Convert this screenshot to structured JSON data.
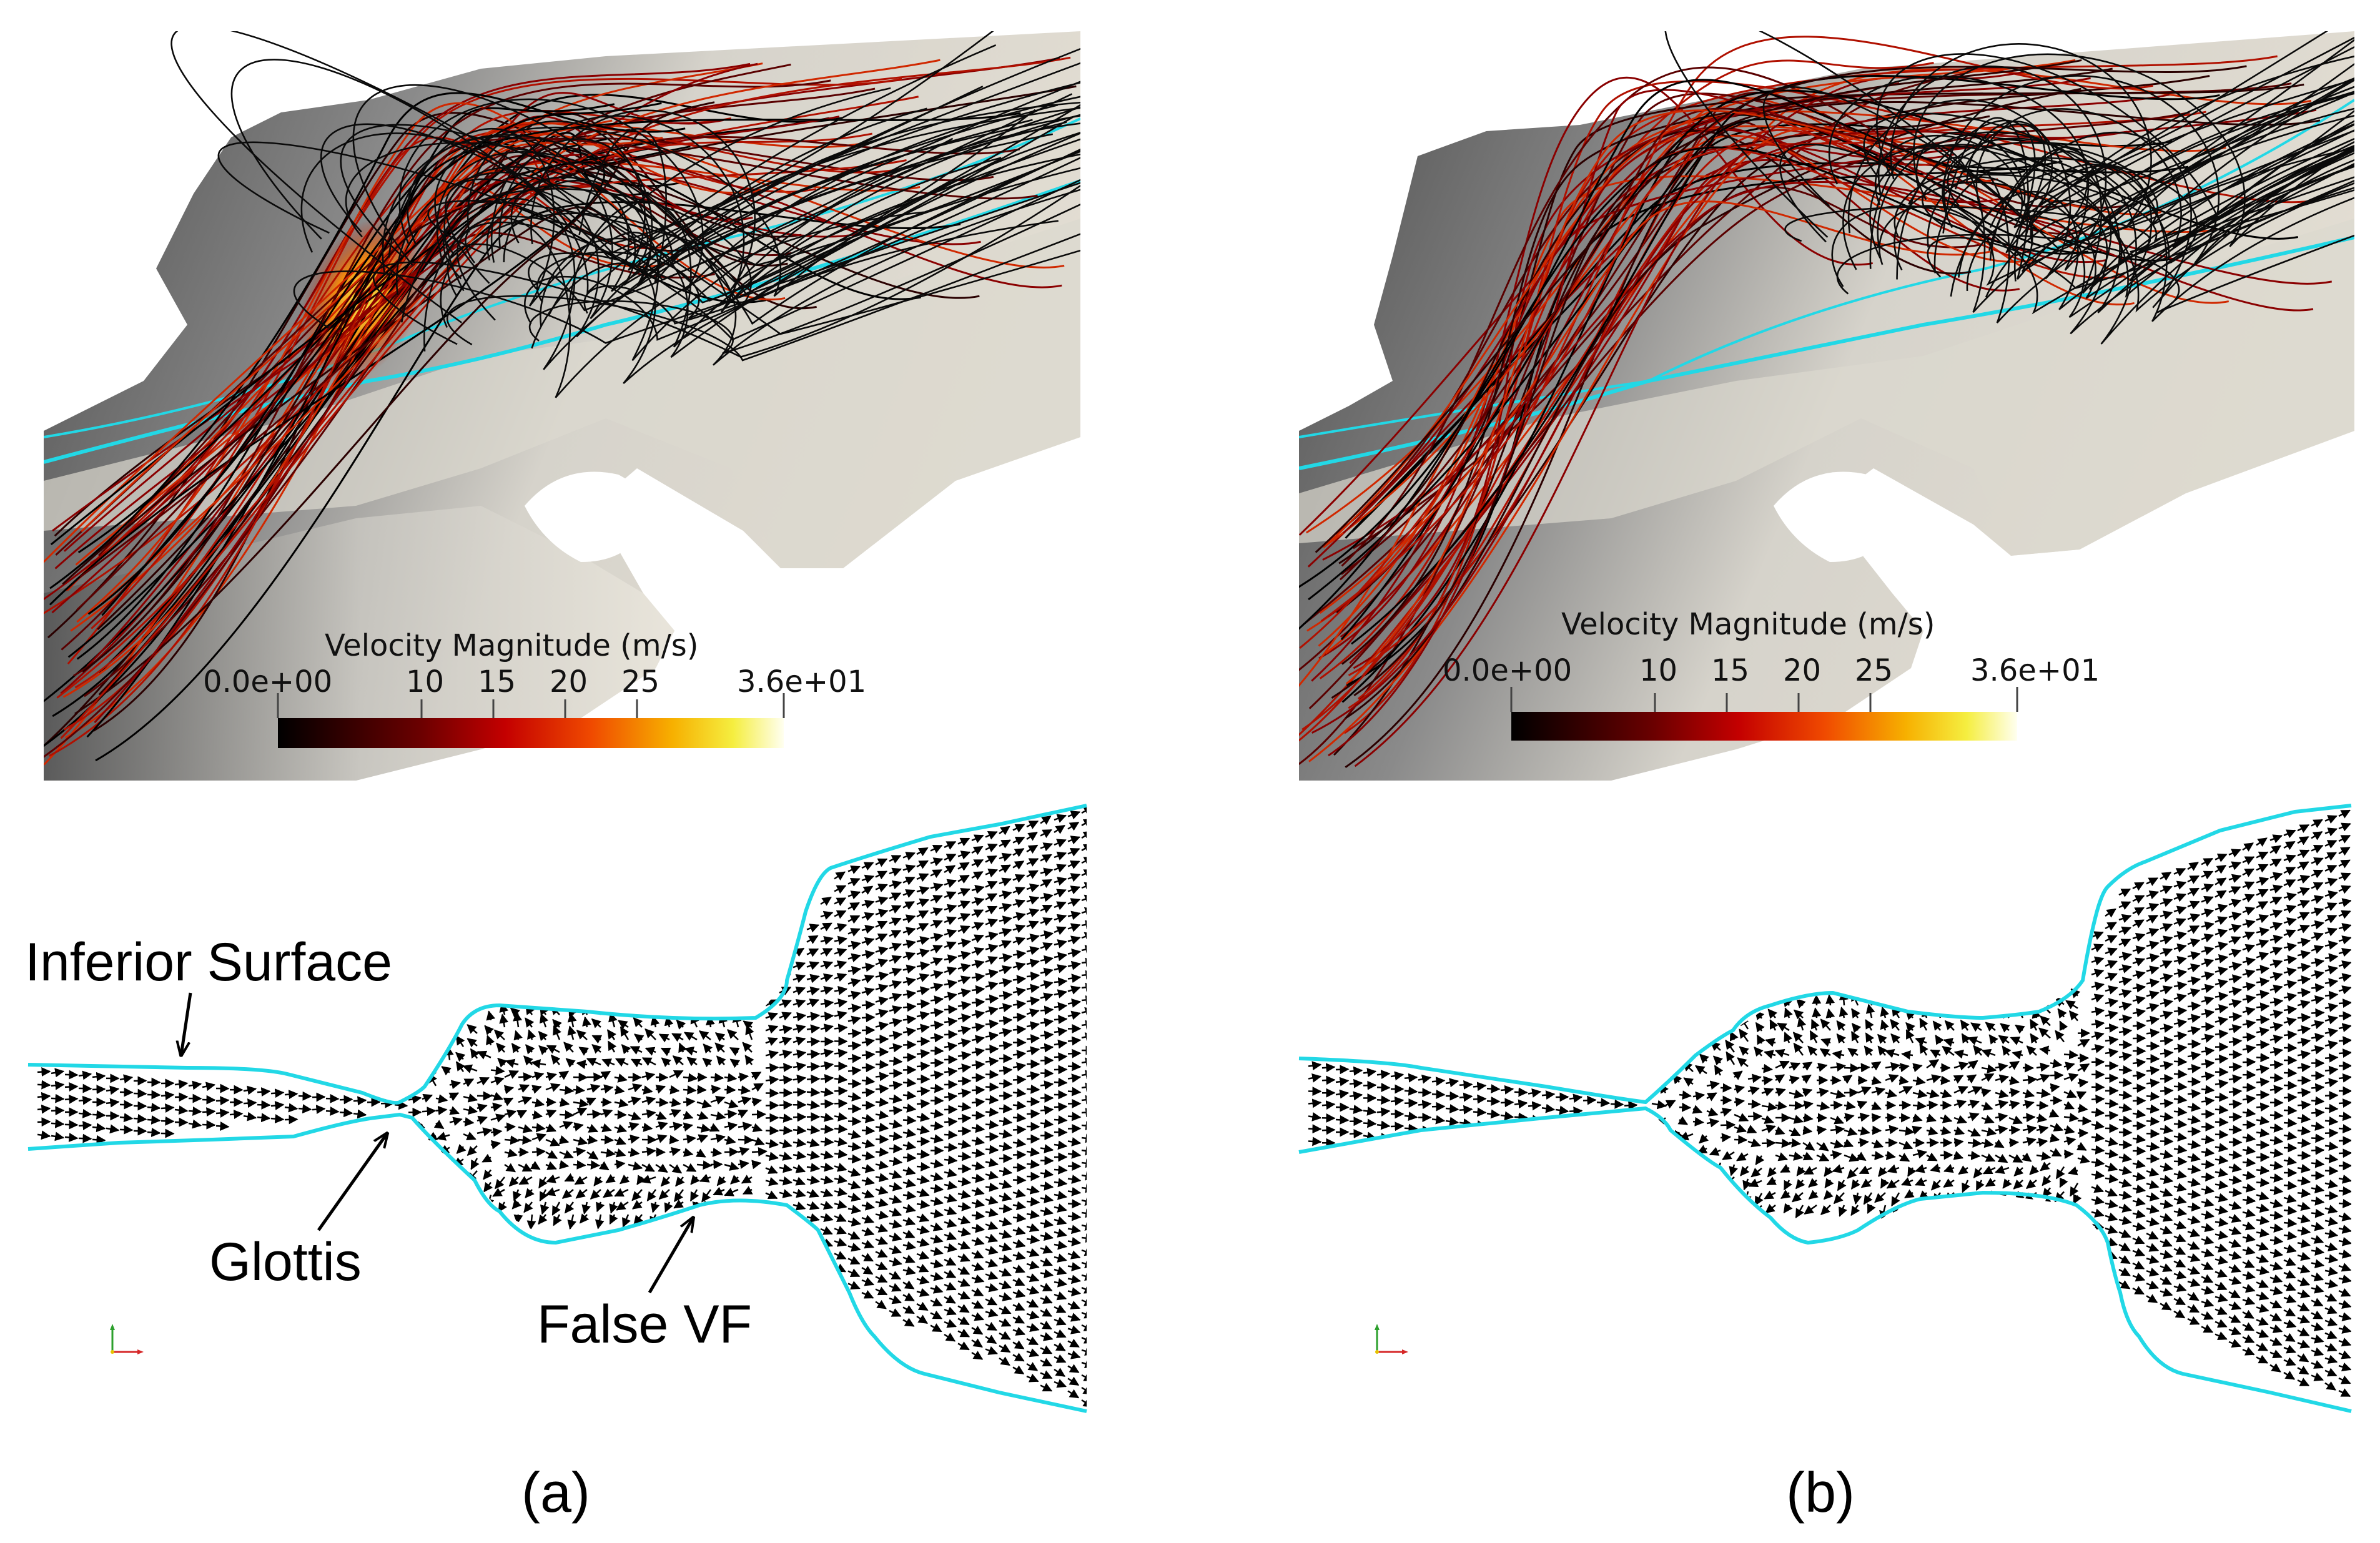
{
  "colorbar": {
    "title": "Velocity Magnitude (m/s)",
    "ticks": [
      "0.0e+00",
      "10",
      "15",
      "20",
      "25",
      "3.6e+01"
    ],
    "colors": [
      "#000000",
      "#5a0000",
      "#b80000",
      "#ee3a00",
      "#f7a000",
      "#f6ee3a",
      "#ffffe8"
    ]
  },
  "annotations": {
    "inferior_surface": "Inferior Surface",
    "glottis": "Glottis",
    "false_vf": "False VF"
  },
  "captions": {
    "a": "(a)",
    "b": "(b)"
  },
  "colors": {
    "outline": "#22d8e6",
    "tissue_dark": "#5e5e5e",
    "tissue_light": "#ece8df"
  }
}
